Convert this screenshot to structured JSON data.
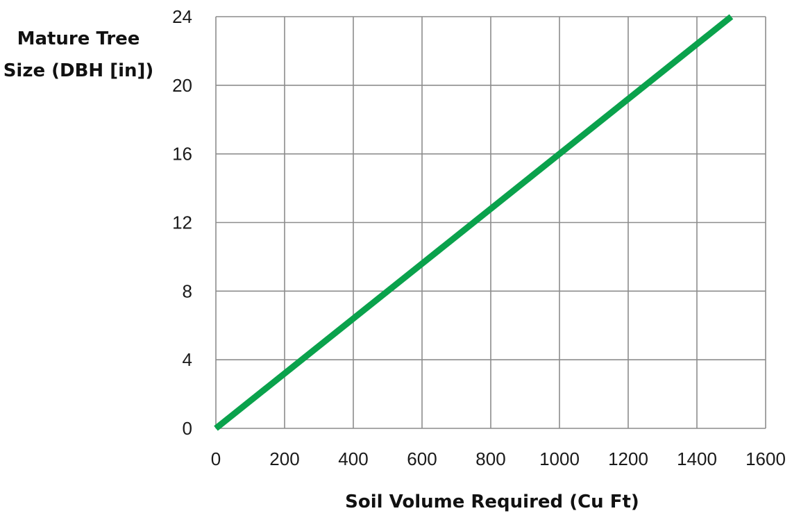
{
  "chart_data": {
    "type": "line",
    "title": "",
    "xlabel": "Soil Volume Required (Cu Ft)",
    "ylabel_lines": [
      "Mature Tree",
      "Size (DBH [in])"
    ],
    "xlim": [
      0,
      1600
    ],
    "ylim": [
      0,
      24
    ],
    "xticks": [
      0,
      200,
      400,
      600,
      800,
      1000,
      1200,
      1400,
      1600
    ],
    "yticks": [
      0,
      4,
      8,
      12,
      16,
      20,
      24
    ],
    "grid": true,
    "legend": "none",
    "series": [
      {
        "x": [
          0,
          1500
        ],
        "y": [
          0,
          24
        ],
        "color": "#0aa24c"
      }
    ]
  }
}
